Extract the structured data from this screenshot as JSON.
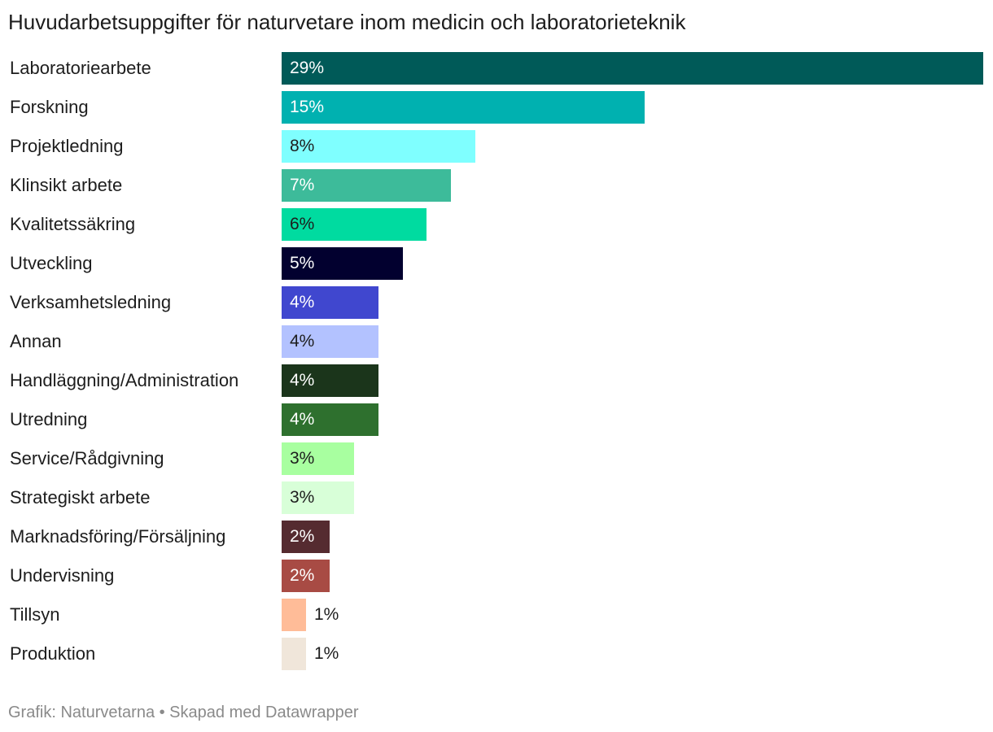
{
  "title": "Huvudarbetsuppgifter för naturvetare inom medicin och laboratorieteknik",
  "footer": "Grafik: Naturvetarna • Skapad med Datawrapper",
  "chart_data": {
    "type": "bar",
    "orientation": "horizontal",
    "title": "Huvudarbetsuppgifter för naturvetare inom medicin och laboratorieteknik",
    "unit": "%",
    "xlim": [
      0,
      29
    ],
    "categories": [
      "Laboratoriearbete",
      "Forskning",
      "Projektledning",
      "Klinsikt arbete",
      "Kvalitetssäkring",
      "Utveckling",
      "Verksamhetsledning",
      "Annan",
      "Handläggning/Administration",
      "Utredning",
      "Service/Rådgivning",
      "Strategiskt arbete",
      "Marknadsföring/Försäljning",
      "Undervisning",
      "Tillsyn",
      "Produktion"
    ],
    "values": [
      29,
      15,
      8,
      7,
      6,
      5,
      4,
      4,
      4,
      4,
      3,
      3,
      2,
      2,
      1,
      1
    ],
    "value_labels": [
      "29%",
      "15%",
      "8%",
      "7%",
      "6%",
      "5%",
      "4%",
      "4%",
      "4%",
      "4%",
      "3%",
      "3%",
      "2%",
      "2%",
      "1%",
      "1%"
    ],
    "colors": [
      "#005a58",
      "#00b1b0",
      "#7fffff",
      "#3dbb9a",
      "#00dba0",
      "#02002f",
      "#4047cf",
      "#b3c2ff",
      "#1b351b",
      "#2e702e",
      "#a8ffa0",
      "#d8ffd8",
      "#552b30",
      "#a84b44",
      "#ffbc98",
      "#f0e6da"
    ],
    "label_colors": [
      "#ffffff",
      "#ffffff",
      "#1d1d1d",
      "#ffffff",
      "#1d1d1d",
      "#ffffff",
      "#ffffff",
      "#1d1d1d",
      "#ffffff",
      "#ffffff",
      "#1d1d1d",
      "#1d1d1d",
      "#ffffff",
      "#ffffff",
      "#1d1d1d",
      "#1d1d1d"
    ]
  }
}
